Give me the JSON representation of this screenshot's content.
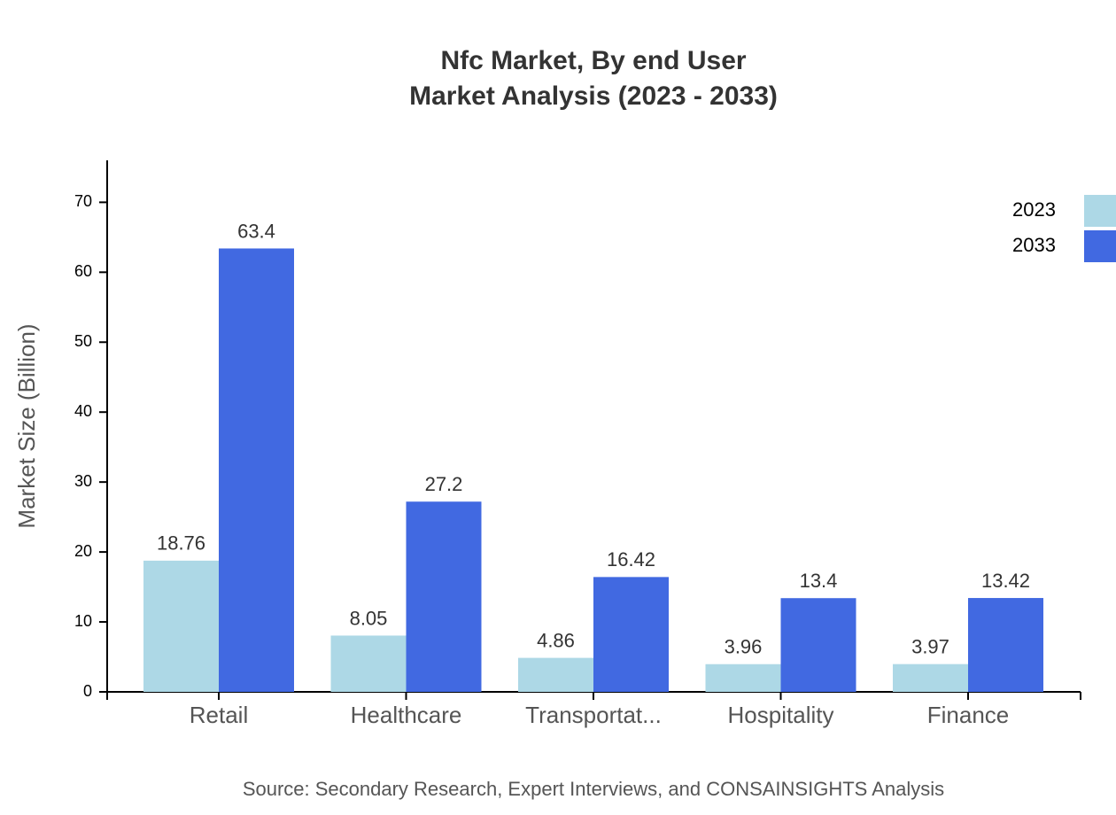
{
  "chart_data": {
    "type": "bar",
    "title": "Nfc Market, By end User",
    "subtitle": "Market Analysis (2023 - 2033)",
    "y_label": "Market Size (Billion)",
    "source": "Source: Secondary Research, Expert Interviews, and CONSAINSIGHTS Analysis",
    "categories": [
      "Retail",
      "Healthcare",
      "Transportat...",
      "Hospitality",
      "Finance"
    ],
    "series": [
      {
        "name": "2023",
        "color": "#add8e6",
        "values": [
          18.76,
          8.05,
          4.86,
          3.96,
          3.97
        ]
      },
      {
        "name": "2033",
        "color": "#4169e1",
        "values": [
          63.4,
          27.2,
          16.42,
          13.4,
          13.42
        ]
      }
    ],
    "ylim": [
      0,
      76
    ],
    "yticks": [
      0,
      10,
      20,
      30,
      40,
      50,
      60,
      70
    ],
    "legend": "top-right"
  }
}
